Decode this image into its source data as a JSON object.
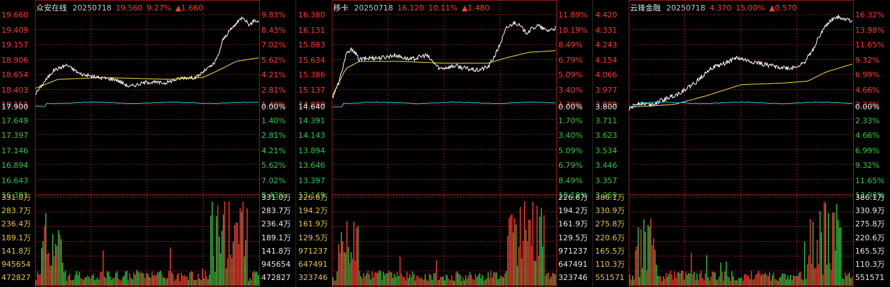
{
  "colors": {
    "up": "#ff3b30",
    "down": "#2ecc40",
    "avg": "#f2e24a",
    "vol_line": "#38c8e8",
    "price": "#ffffff",
    "grid": "#8b1a1a",
    "vol_label": "#e6c44a"
  },
  "panels": [
    {
      "name": "众安在线",
      "date": "20250718",
      "price": "19.560",
      "pct": "9.27%",
      "change": "▲1.660",
      "price_ticks_up": [
        "19.660",
        "19.409",
        "19.157",
        "18.906",
        "18.654",
        "18.403",
        "18.151"
      ],
      "base": "17.900",
      "price_ticks_down": [
        "17.649",
        "17.397",
        "17.146",
        "16.894",
        "16.643",
        "16.391"
      ],
      "pct_ticks_up": [
        "9.83%",
        "8.43%",
        "7.02%",
        "5.62%",
        "4.21%",
        "2.81%",
        "1.40%"
      ],
      "base_pct": "0.00%",
      "pct_ticks_down": [
        "1.40%",
        "2.81%",
        "4.21%",
        "5.62%",
        "7.02%",
        "8.43%"
      ],
      "vol_ticks": [
        "331.0万",
        "283.7万",
        "236.4万",
        "189.1万",
        "141.8万",
        "945654",
        "472827"
      ]
    },
    {
      "name": "移卡",
      "date": "20250718",
      "price": "16.120",
      "pct": "10.11%",
      "change": "▲1.480",
      "price_ticks_up": [
        "16.380",
        "16.131",
        "15.883",
        "15.634",
        "15.386",
        "15.137",
        "14.889"
      ],
      "base": "14.640",
      "price_ticks_down": [
        "14.391",
        "14.143",
        "13.894",
        "13.646",
        "13.397",
        "13.149"
      ],
      "pct_ticks_up": [
        "11.89%",
        "10.19%",
        "8.49%",
        "6.79%",
        "5.09%",
        "3.40%",
        "1.70%"
      ],
      "base_pct": "0.00%",
      "pct_ticks_down": [
        "1.70%",
        "3.40%",
        "5.09%",
        "6.79%",
        "8.49%",
        "10.19%"
      ],
      "vol_ticks": [
        "226.6万",
        "194.2万",
        "161.9万",
        "129.5万",
        "971237",
        "647491",
        "323746"
      ]
    },
    {
      "name": "云锋金融",
      "date": "20250718",
      "price": "4.370",
      "pct": "15.00%",
      "change": "▲0.570",
      "price_ticks_up": [
        "4.420",
        "4.331",
        "4.243",
        "4.154",
        "4.066",
        "3.977",
        "3.889"
      ],
      "base": "3.800",
      "price_ticks_down": [
        "3.711",
        "3.623",
        "3.534",
        "3.446",
        "3.357",
        "3.269"
      ],
      "pct_ticks_up": [
        "16.32%",
        "13.98%",
        "11.65%",
        "9.32%",
        "6.99%",
        "4.66%",
        "2.33%"
      ],
      "base_pct": "0.00%",
      "pct_ticks_down": [
        "2.33%",
        "4.66%",
        "6.99%",
        "9.32%",
        "11.65%",
        "13.98%"
      ],
      "vol_ticks": [
        "386.1万",
        "330.9万",
        "275.8万",
        "220.6万",
        "165.5万",
        "110.3万",
        "551571"
      ]
    }
  ]
}
